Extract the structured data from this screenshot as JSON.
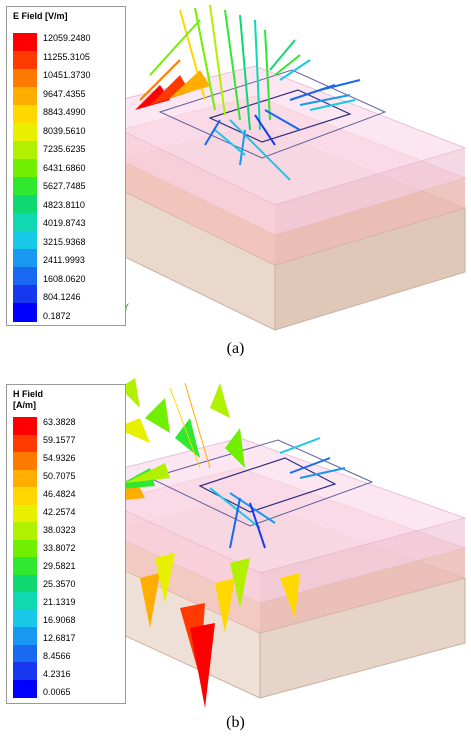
{
  "figure_a": {
    "legend": {
      "title": "E Field [V/m]",
      "ticks": [
        "12059.2480",
        "11255.3105",
        "10451.3730",
        "9647.4355",
        "8843.4990",
        "8039.5610",
        "7235.6235",
        "6431.6860",
        "5627.7485",
        "4823.8110",
        "4019.8743",
        "3215.9368",
        "2411.9993",
        "1608.0620",
        "804.1246",
        "0.1872"
      ]
    },
    "axes": {
      "z": "Z",
      "x": "X",
      "y": "Y"
    },
    "caption": "(a)"
  },
  "figure_b": {
    "legend": {
      "title": "H Field",
      "unit": "[A/m]",
      "ticks": [
        "63.3828",
        "59.1577",
        "54.9326",
        "50.7075",
        "46.4824",
        "42.2574",
        "38.0323",
        "33.8072",
        "29.5821",
        "25.3570",
        "21.1319",
        "16.9068",
        "12.6817",
        "8.4566",
        "4.2316",
        "0.0065"
      ]
    },
    "axes": {
      "z": "Z",
      "x": "X",
      "y": "Y"
    },
    "caption": "(b)"
  },
  "colors": {
    "scale": [
      "#ff0000",
      "#ff3a00",
      "#ff7a00",
      "#ffae00",
      "#ffd800",
      "#e8f000",
      "#b0f000",
      "#70f000",
      "#30e830",
      "#10d870",
      "#10d8b0",
      "#18c8e8",
      "#1898f0",
      "#1868f0",
      "#1838f0",
      "#0000ff"
    ]
  }
}
